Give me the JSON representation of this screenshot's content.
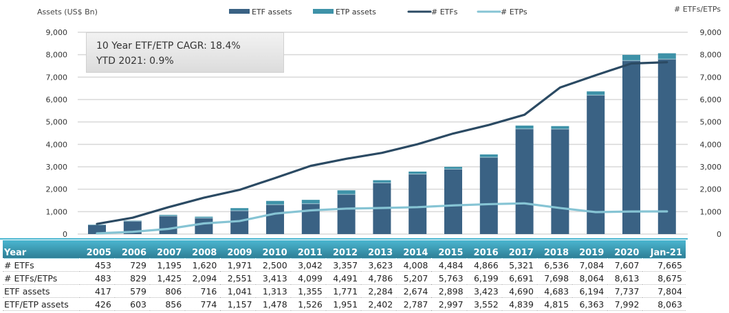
{
  "chart_data": {
    "type": "bar",
    "subtype": "stacked bar with dual-axis lines",
    "categories": [
      "2005",
      "2006",
      "2007",
      "2008",
      "2009",
      "2010",
      "2011",
      "2012",
      "2013",
      "2014",
      "2015",
      "2016",
      "2017",
      "2018",
      "2019",
      "2020",
      "Jan-21"
    ],
    "series": [
      {
        "name": "ETF assets",
        "type": "bar",
        "axis": "left",
        "color": "#3a6284",
        "values": [
          417,
          579,
          806,
          716,
          1041,
          1313,
          1355,
          1771,
          2284,
          2674,
          2898,
          3423,
          4690,
          4683,
          6194,
          7737,
          7804
        ]
      },
      {
        "name": "ETP assets",
        "type": "bar",
        "axis": "left",
        "color": "#3e92a8",
        "values": [
          9,
          24,
          50,
          58,
          116,
          165,
          171,
          180,
          118,
          113,
          99,
          129,
          149,
          132,
          169,
          255,
          259
        ]
      },
      {
        "name": "# ETFs",
        "type": "line",
        "axis": "right",
        "color": "#2b4a63",
        "values": [
          453,
          729,
          1195,
          1620,
          1971,
          2500,
          3042,
          3357,
          3623,
          4008,
          4484,
          4866,
          5321,
          6536,
          7084,
          7607,
          7665
        ]
      },
      {
        "name": "# ETPs",
        "type": "line",
        "axis": "right",
        "color": "#86c4d4",
        "values": [
          30,
          100,
          230,
          474,
          580,
          913,
          1057,
          1134,
          1163,
          1199,
          1279,
          1333,
          1370,
          1162,
          980,
          1006,
          1010
        ]
      }
    ],
    "left_axis": {
      "label": "Assets (US$ Bn)",
      "ylim": [
        0,
        9000
      ],
      "ticks": [
        "0",
        "1,000",
        "2,000",
        "3,000",
        "4,000",
        "5,000",
        "6,000",
        "7,000",
        "8,000",
        "9,000"
      ]
    },
    "right_axis": {
      "label": "# ETFs/ETPs",
      "ylim": [
        0,
        9000
      ],
      "ticks": [
        "0",
        "1,000",
        "2,000",
        "3,000",
        "4,000",
        "5,000",
        "6,000",
        "7,000",
        "8,000",
        "9,000"
      ]
    },
    "legend": {
      "placement": "top-center",
      "entries": [
        "ETF assets",
        "ETP assets",
        "# ETFs",
        "# ETPs"
      ]
    },
    "grid": true,
    "annotation": [
      "10 Year ETF/ETP CAGR: 18.4%",
      "YTD 2021: 0.9%"
    ]
  },
  "table": {
    "header": [
      "Year",
      "2005",
      "2006",
      "2007",
      "2008",
      "2009",
      "2010",
      "2011",
      "2012",
      "2013",
      "2014",
      "2015",
      "2016",
      "2017",
      "2018",
      "2019",
      "2020",
      "Jan-21"
    ],
    "rows": [
      [
        "# ETFs",
        "453",
        "729",
        "1,195",
        "1,620",
        "1,971",
        "2,500",
        "3,042",
        "3,357",
        "3,623",
        "4,008",
        "4,484",
        "4,866",
        "5,321",
        "6,536",
        "7,084",
        "7,607",
        "7,665"
      ],
      [
        "# ETFs/ETPs",
        "483",
        "829",
        "1,425",
        "2,094",
        "2,551",
        "3,413",
        "4,099",
        "4,491",
        "4,786",
        "5,207",
        "5,763",
        "6,199",
        "6,691",
        "7,698",
        "8,064",
        "8,613",
        "8,675"
      ],
      [
        "ETF assets",
        "417",
        "579",
        "806",
        "716",
        "1,041",
        "1,313",
        "1,355",
        "1,771",
        "2,284",
        "2,674",
        "2,898",
        "3,423",
        "4,690",
        "4,683",
        "6,194",
        "7,737",
        "7,804"
      ],
      [
        "ETF/ETP assets",
        "426",
        "603",
        "856",
        "774",
        "1,157",
        "1,478",
        "1,526",
        "1,951",
        "2,402",
        "2,787",
        "2,997",
        "3,552",
        "4,839",
        "4,815",
        "6,363",
        "7,992",
        "8,063"
      ]
    ]
  }
}
